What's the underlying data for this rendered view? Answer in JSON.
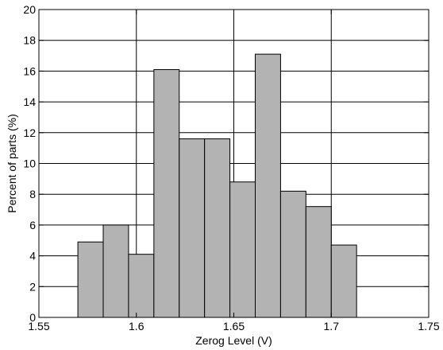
{
  "chart_data": {
    "type": "bar",
    "subtype": "histogram",
    "title": "",
    "xlabel": "Zerog Level (V)",
    "ylabel": "Percent of parts (%)",
    "xlim": [
      1.55,
      1.75
    ],
    "ylim": [
      0,
      20
    ],
    "x_ticks": [
      1.55,
      1.6,
      1.65,
      1.7,
      1.75
    ],
    "x_tick_labels": [
      "1.55",
      "1.6",
      "1.65",
      "1.7",
      "1.75"
    ],
    "y_ticks": [
      0,
      2,
      4,
      6,
      8,
      10,
      12,
      14,
      16,
      18,
      20
    ],
    "y_tick_labels": [
      "0",
      "2",
      "4",
      "6",
      "8",
      "10",
      "12",
      "14",
      "16",
      "18",
      "20"
    ],
    "grid": true,
    "bins": [
      {
        "x0": 1.57,
        "x1": 1.583,
        "value": 4.9
      },
      {
        "x0": 1.583,
        "x1": 1.596,
        "value": 6.0
      },
      {
        "x0": 1.596,
        "x1": 1.609,
        "value": 4.1
      },
      {
        "x0": 1.609,
        "x1": 1.622,
        "value": 16.1
      },
      {
        "x0": 1.622,
        "x1": 1.635,
        "value": 11.6
      },
      {
        "x0": 1.635,
        "x1": 1.648,
        "value": 11.6
      },
      {
        "x0": 1.648,
        "x1": 1.661,
        "value": 8.8
      },
      {
        "x0": 1.661,
        "x1": 1.674,
        "value": 17.1
      },
      {
        "x0": 1.674,
        "x1": 1.687,
        "value": 8.2
      },
      {
        "x0": 1.687,
        "x1": 1.7,
        "value": 7.2
      },
      {
        "x0": 1.7,
        "x1": 1.713,
        "value": 4.7
      }
    ],
    "colors": {
      "bar_fill": "#b3b3b3",
      "bar_stroke": "#000000",
      "grid": "#000000",
      "background": "#ffffff"
    }
  }
}
